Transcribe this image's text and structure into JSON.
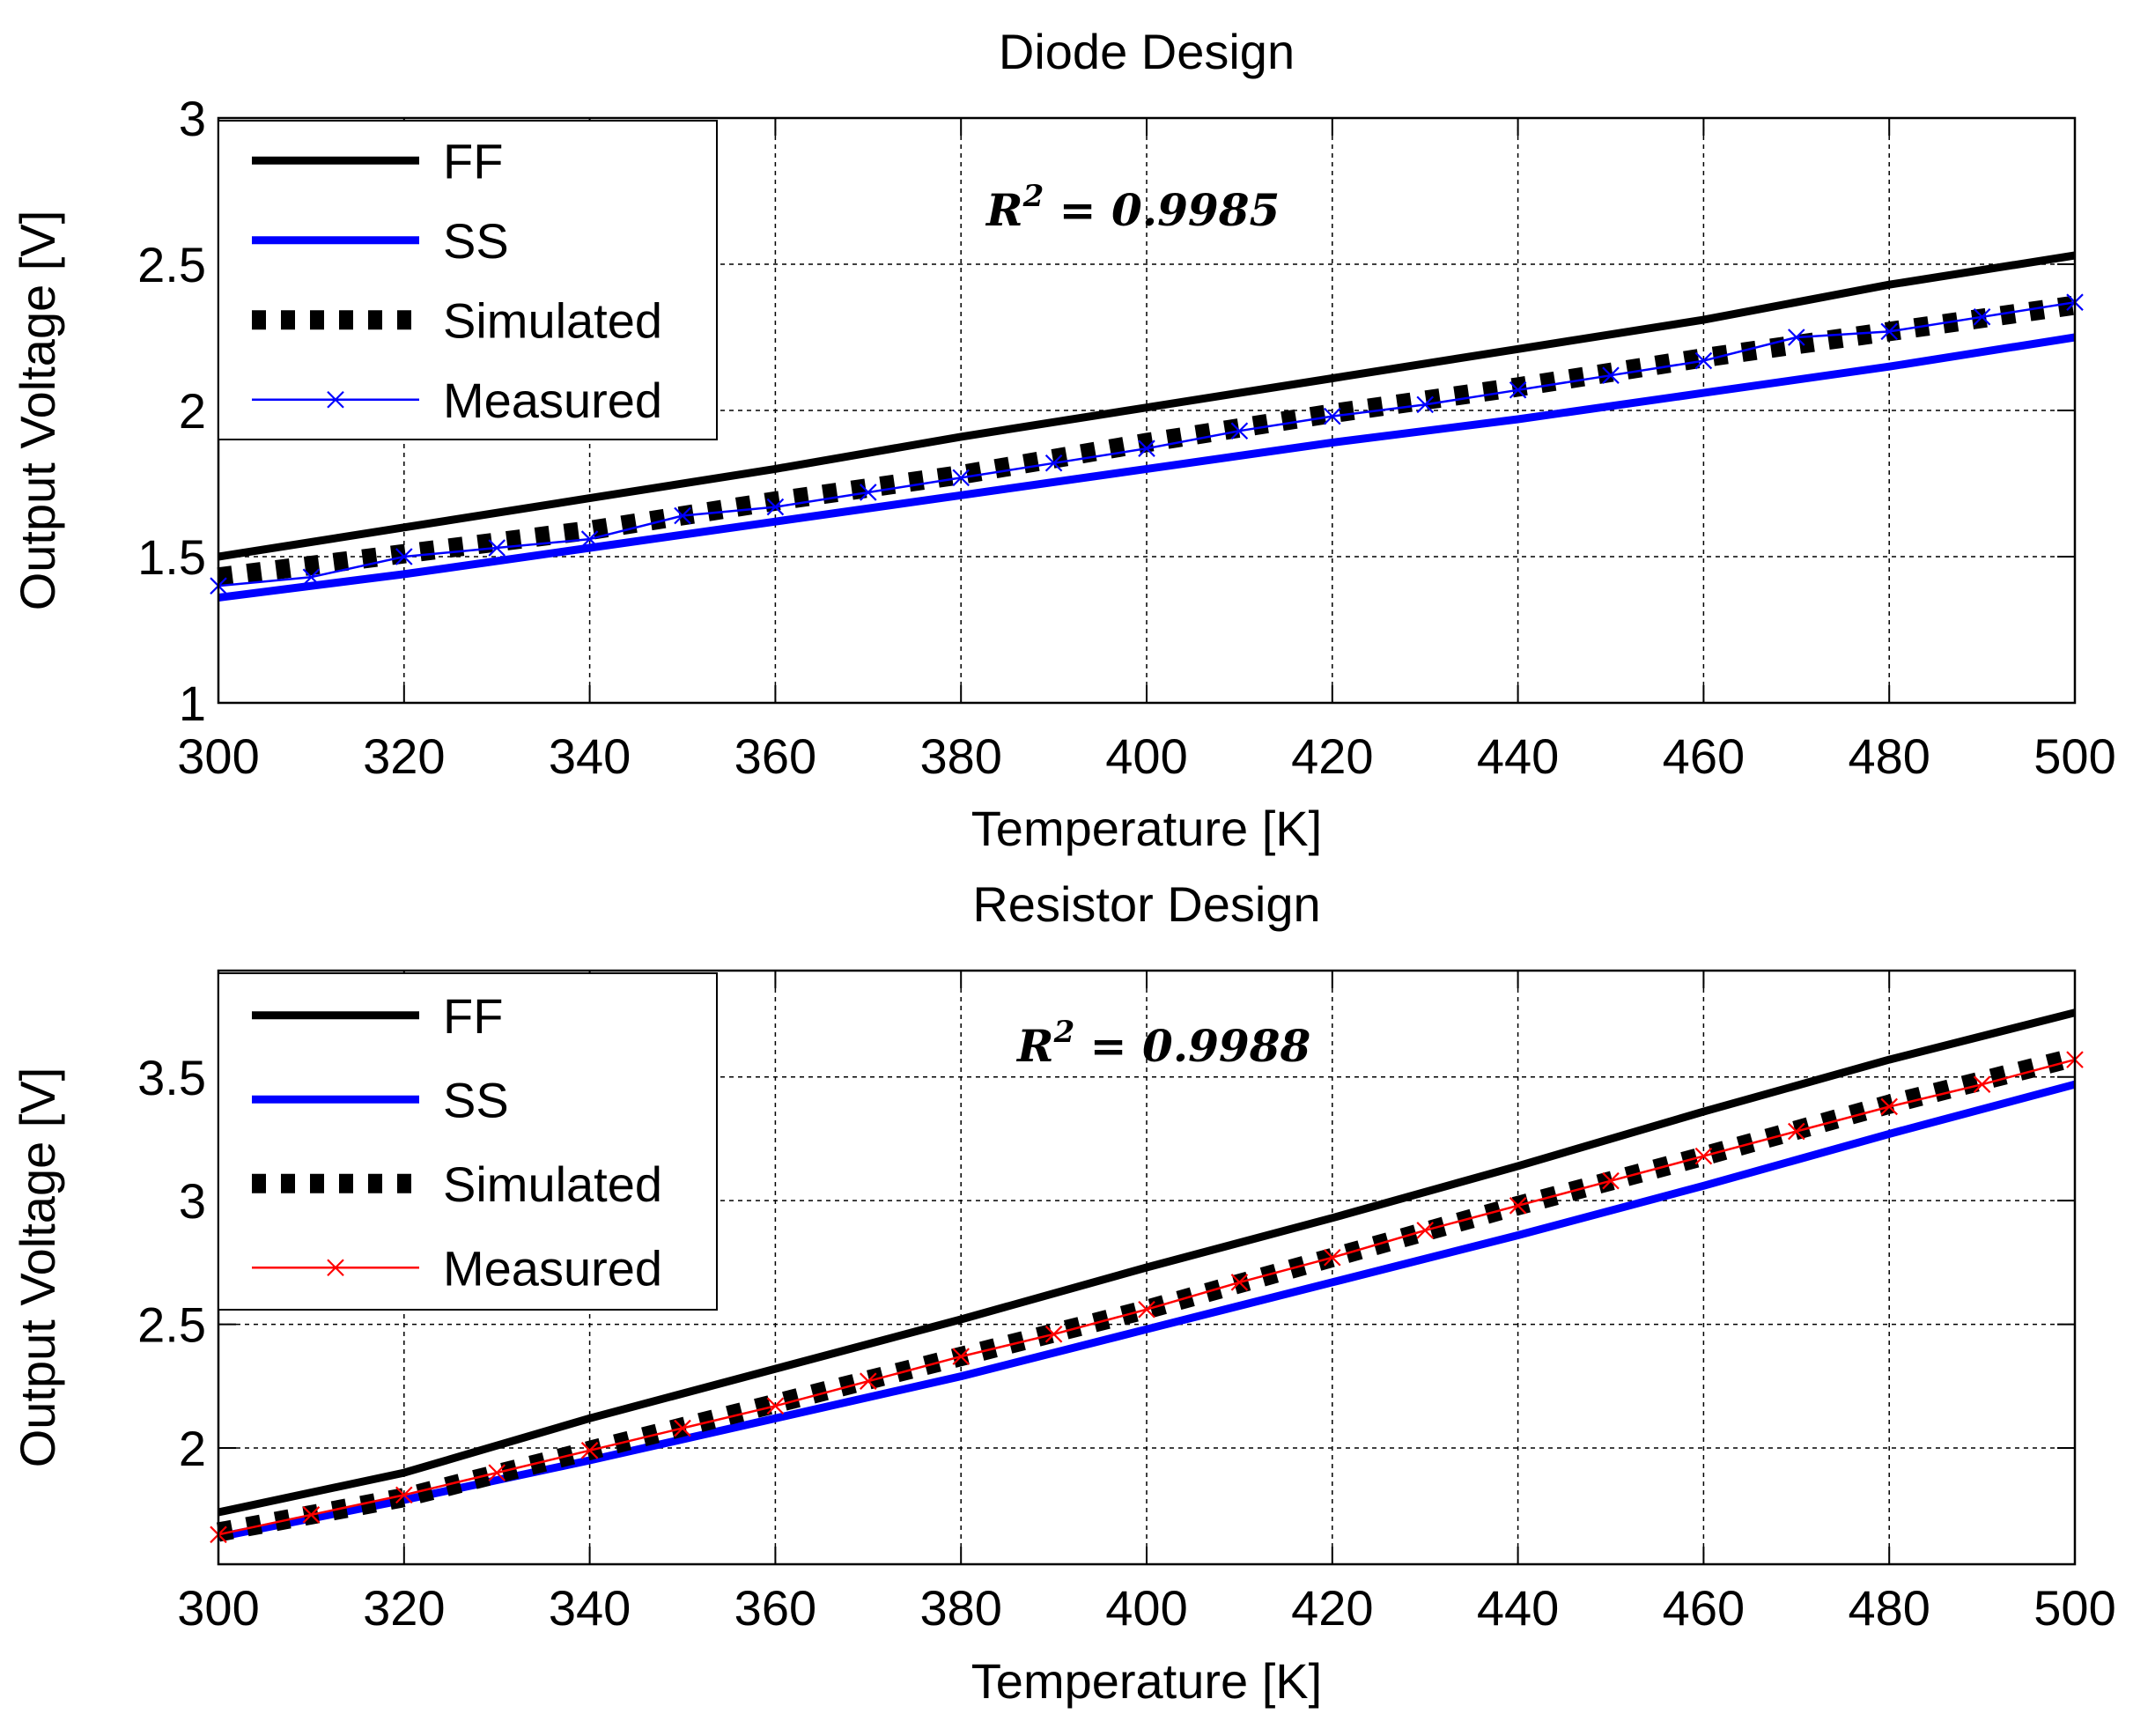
{
  "chart_data": [
    {
      "type": "line",
      "title": "Diode Design",
      "xlabel": "Temperature [K]",
      "ylabel": "Output Voltage [V]",
      "xlim": [
        300,
        500
      ],
      "ylim": [
        1,
        3
      ],
      "xticks": [
        "300",
        "320",
        "340",
        "360",
        "380",
        "400",
        "420",
        "440",
        "460",
        "480",
        "500"
      ],
      "yticks": [
        "1",
        "1.5",
        "2",
        "2.5",
        "3"
      ],
      "grid": true,
      "legend_position": "top-left",
      "annotation": {
        "var": "R",
        "sup": "2",
        "text": " = 0.9985"
      },
      "series": [
        {
          "name": "FF",
          "color": "#000000",
          "style": "solid",
          "x": [
            300,
            320,
            340,
            360,
            380,
            400,
            420,
            440,
            460,
            480,
            500
          ],
          "values": [
            1.5,
            1.6,
            1.7,
            1.8,
            1.91,
            2.01,
            2.11,
            2.21,
            2.31,
            2.43,
            2.53
          ]
        },
        {
          "name": "SS",
          "color": "#0000ff",
          "style": "solid",
          "x": [
            300,
            320,
            340,
            360,
            380,
            400,
            420,
            440,
            460,
            480,
            500
          ],
          "values": [
            1.36,
            1.44,
            1.53,
            1.62,
            1.71,
            1.8,
            1.89,
            1.97,
            2.06,
            2.15,
            2.25
          ]
        },
        {
          "name": "Simulated",
          "color": "#000000",
          "style": "dotted",
          "x": [
            300,
            320,
            340,
            360,
            380,
            400,
            420,
            440,
            460,
            480,
            500
          ],
          "values": [
            1.43,
            1.51,
            1.59,
            1.69,
            1.78,
            1.89,
            1.99,
            2.08,
            2.18,
            2.27,
            2.36
          ]
        },
        {
          "name": "Measured",
          "color": "#0000ff",
          "style": "marker",
          "x": [
            300,
            310,
            320,
            330,
            340,
            350,
            360,
            370,
            380,
            390,
            400,
            410,
            420,
            430,
            440,
            450,
            460,
            470,
            480,
            490,
            500
          ],
          "values": [
            1.4,
            1.43,
            1.5,
            1.53,
            1.56,
            1.64,
            1.67,
            1.72,
            1.77,
            1.82,
            1.87,
            1.93,
            1.98,
            2.02,
            2.07,
            2.12,
            2.17,
            2.25,
            2.27,
            2.32,
            2.37
          ]
        }
      ]
    },
    {
      "type": "line",
      "title": "Resistor Design",
      "xlabel": "Temperature [K]",
      "ylabel": "Output Voltage [V]",
      "xlim": [
        300,
        500
      ],
      "ylim": [
        1.53,
        3.93
      ],
      "xticks": [
        "300",
        "320",
        "340",
        "360",
        "380",
        "400",
        "420",
        "440",
        "460",
        "480",
        "500"
      ],
      "yticks": [
        "2",
        "2.5",
        "3",
        "3.5"
      ],
      "grid": true,
      "legend_position": "top-left",
      "annotation": {
        "var": "R",
        "sup": "2",
        "text": " = 0.9988"
      },
      "series": [
        {
          "name": "FF",
          "color": "#000000",
          "style": "solid",
          "x": [
            300,
            320,
            340,
            360,
            380,
            400,
            420,
            440,
            460,
            480,
            500
          ],
          "values": [
            1.74,
            1.9,
            2.12,
            2.32,
            2.52,
            2.73,
            2.93,
            3.14,
            3.36,
            3.57,
            3.76
          ]
        },
        {
          "name": "SS",
          "color": "#0000ff",
          "style": "solid",
          "x": [
            300,
            320,
            340,
            360,
            380,
            400,
            420,
            440,
            460,
            480,
            500
          ],
          "values": [
            1.64,
            1.79,
            1.95,
            2.12,
            2.29,
            2.48,
            2.67,
            2.86,
            3.06,
            3.27,
            3.47
          ]
        },
        {
          "name": "Simulated",
          "color": "#000000",
          "style": "dotted",
          "x": [
            300,
            320,
            340,
            360,
            380,
            400,
            420,
            440,
            460,
            480,
            500
          ],
          "values": [
            1.66,
            1.8,
            1.99,
            2.18,
            2.37,
            2.56,
            2.77,
            2.98,
            3.18,
            3.39,
            3.58
          ]
        },
        {
          "name": "Measured",
          "color": "#ff0000",
          "style": "marker",
          "x": [
            300,
            310,
            320,
            330,
            340,
            350,
            360,
            370,
            380,
            390,
            400,
            410,
            420,
            430,
            440,
            450,
            460,
            470,
            480,
            490,
            500
          ],
          "values": [
            1.65,
            1.73,
            1.81,
            1.9,
            1.99,
            2.08,
            2.17,
            2.27,
            2.37,
            2.46,
            2.56,
            2.67,
            2.77,
            2.88,
            2.98,
            3.08,
            3.18,
            3.28,
            3.38,
            3.47,
            3.57
          ]
        }
      ]
    }
  ]
}
